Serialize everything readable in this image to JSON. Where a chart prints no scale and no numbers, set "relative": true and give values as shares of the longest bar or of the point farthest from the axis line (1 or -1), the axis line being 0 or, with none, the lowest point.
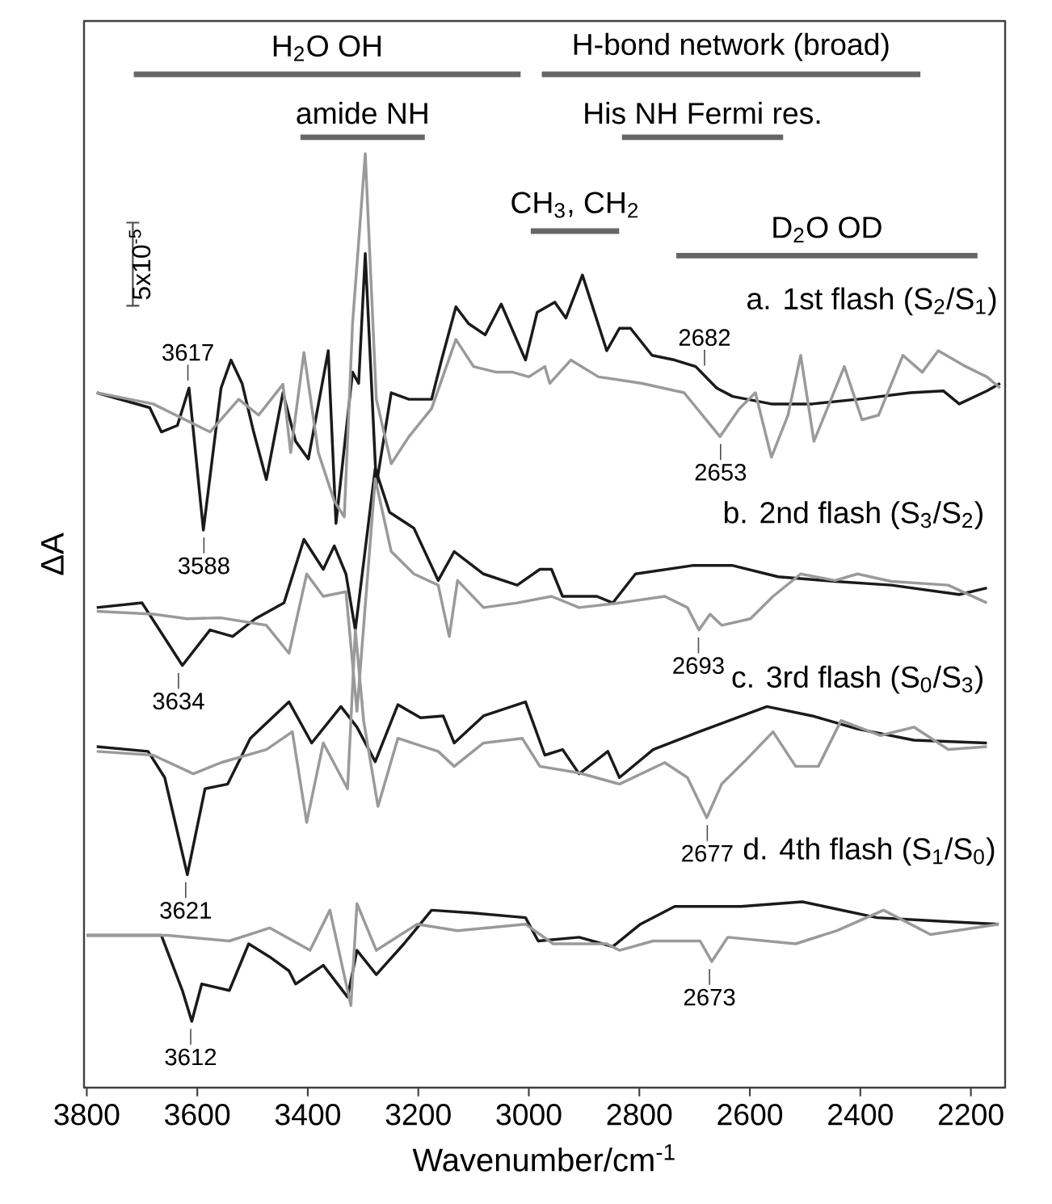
{
  "chart_data": {
    "type": "line",
    "relative": true,
    "xlabel": "Wavenumber/cm$^{-1}$",
    "ylabel": "ΔA",
    "xlim": [
      3805,
      2138
    ],
    "xticks": [
      3800,
      3600,
      3400,
      3200,
      3000,
      2800,
      2600,
      2400,
      2200
    ],
    "tick_labels": "x",
    "series": [
      {
        "name": "a. 1st flash (S$_{2}$/S$_{1}$)",
        "color": "#1a1a1a",
        "x": [
          3782,
          3686,
          3665,
          3636,
          3615,
          3589,
          3557,
          3539,
          3519,
          3498,
          3475,
          3445,
          3422,
          3399,
          3363,
          3349,
          3319,
          3308,
          3296,
          3276,
          3249,
          3217,
          3176,
          3158,
          3132,
          3109,
          3079,
          3050,
          3006,
          2985,
          2953,
          2933,
          2903,
          2859,
          2836,
          2816,
          2777,
          2736,
          2698,
          2660,
          2631,
          2561,
          2487,
          2405,
          2309,
          2250,
          2221,
          2171,
          2147
        ],
        "values": [
          0.744,
          0.728,
          0.702,
          0.709,
          0.749,
          0.597,
          0.749,
          0.779,
          0.754,
          0.702,
          0.651,
          0.744,
          0.692,
          0.673,
          0.789,
          0.604,
          0.766,
          0.754,
          0.893,
          0.645,
          0.744,
          0.737,
          0.737,
          0.779,
          0.836,
          0.818,
          0.806,
          0.839,
          0.779,
          0.83,
          0.841,
          0.824,
          0.87,
          0.789,
          0.813,
          0.813,
          0.784,
          0.779,
          0.772,
          0.749,
          0.74,
          0.732,
          0.732,
          0.737,
          0.744,
          0.746,
          0.732,
          0.746,
          0.754
        ]
      },
      {
        "color": "#9a9a9a",
        "x": [
          3782,
          3680,
          3577,
          3525,
          3489,
          3445,
          3431,
          3407,
          3381,
          3352,
          3334,
          3319,
          3296,
          3276,
          3249,
          3217,
          3176,
          3132,
          3100,
          3059,
          3029,
          3000,
          2971,
          2962,
          2924,
          2874,
          2795,
          2719,
          2654,
          2619,
          2590,
          2561,
          2531,
          2508,
          2484,
          2429,
          2397,
          2367,
          2323,
          2288,
          2259,
          2209,
          2171,
          2147
        ],
        "values": [
          0.744,
          0.732,
          0.702,
          0.737,
          0.72,
          0.753,
          0.68,
          0.787,
          0.68,
          0.628,
          0.611,
          0.818,
          1.0,
          0.737,
          0.668,
          0.697,
          0.727,
          0.801,
          0.772,
          0.766,
          0.766,
          0.761,
          0.772,
          0.754,
          0.779,
          0.761,
          0.754,
          0.744,
          0.697,
          0.727,
          0.744,
          0.675,
          0.72,
          0.784,
          0.692,
          0.772,
          0.715,
          0.72,
          0.784,
          0.766,
          0.789,
          0.772,
          0.761,
          0.749
        ]
      },
      {
        "name": "b. 2nd flash (S$_{3}$/S$_{2}$)",
        "color": "#1a1a1a",
        "x": [
          3782,
          3700,
          3627,
          3577,
          3536,
          3495,
          3443,
          3407,
          3372,
          3352,
          3331,
          3314,
          3278,
          3252,
          3208,
          3164,
          3135,
          3082,
          3021,
          2980,
          2959,
          2939,
          2877,
          2848,
          2807,
          2704,
          2631,
          2549,
          2446,
          2344,
          2221,
          2171
        ],
        "values": [
          0.514,
          0.519,
          0.452,
          0.49,
          0.483,
          0.502,
          0.519,
          0.587,
          0.555,
          0.58,
          0.55,
          0.49,
          0.663,
          0.616,
          0.599,
          0.543,
          0.574,
          0.55,
          0.538,
          0.555,
          0.555,
          0.526,
          0.526,
          0.519,
          0.55,
          0.559,
          0.559,
          0.547,
          0.542,
          0.538,
          0.528,
          0.535
        ]
      },
      {
        "color": "#9a9a9a",
        "x": [
          3782,
          3680,
          3618,
          3557,
          3475,
          3434,
          3402,
          3372,
          3331,
          3311,
          3278,
          3249,
          3208,
          3164,
          3144,
          3129,
          3082,
          3021,
          2959,
          2909,
          2836,
          2754,
          2713,
          2692,
          2672,
          2651,
          2599,
          2558,
          2508,
          2446,
          2405,
          2344,
          2241,
          2171
        ],
        "values": [
          0.51,
          0.507,
          0.502,
          0.503,
          0.495,
          0.465,
          0.55,
          0.526,
          0.531,
          0.403,
          0.652,
          0.574,
          0.55,
          0.538,
          0.483,
          0.543,
          0.514,
          0.519,
          0.526,
          0.514,
          0.519,
          0.526,
          0.514,
          0.49,
          0.507,
          0.495,
          0.502,
          0.526,
          0.55,
          0.543,
          0.55,
          0.542,
          0.538,
          0.519
        ]
      },
      {
        "name": "c. 3rd flash (S$_{0}$/S$_{3}$)",
        "color": "#1a1a1a",
        "x": [
          3782,
          3689,
          3659,
          3618,
          3586,
          3545,
          3504,
          3434,
          3393,
          3340,
          3311,
          3278,
          3237,
          3196,
          3155,
          3135,
          3082,
          3006,
          2971,
          2939,
          2909,
          2857,
          2836,
          2775,
          2692,
          2569,
          2487,
          2405,
          2303,
          2171
        ],
        "values": [
          0.365,
          0.36,
          0.332,
          0.228,
          0.32,
          0.325,
          0.374,
          0.413,
          0.369,
          0.408,
          0.386,
          0.349,
          0.41,
          0.396,
          0.398,
          0.369,
          0.398,
          0.413,
          0.356,
          0.362,
          0.336,
          0.36,
          0.332,
          0.362,
          0.381,
          0.408,
          0.398,
          0.384,
          0.372,
          0.369
        ]
      },
      {
        "color": "#9a9a9a",
        "x": [
          3782,
          3680,
          3607,
          3557,
          3475,
          3428,
          3402,
          3372,
          3328,
          3314,
          3299,
          3273,
          3237,
          3164,
          3135,
          3082,
          3012,
          2980,
          2909,
          2836,
          2754,
          2713,
          2678,
          2651,
          2610,
          2558,
          2517,
          2476,
          2435,
          2364,
          2303,
          2241,
          2171
        ],
        "values": [
          0.36,
          0.356,
          0.336,
          0.348,
          0.362,
          0.381,
          0.284,
          0.369,
          0.32,
          0.49,
          0.393,
          0.301,
          0.374,
          0.36,
          0.344,
          0.369,
          0.374,
          0.344,
          0.337,
          0.325,
          0.348,
          0.332,
          0.289,
          0.325,
          0.349,
          0.381,
          0.344,
          0.344,
          0.393,
          0.377,
          0.386,
          0.362,
          0.365
        ]
      },
      {
        "name": "d. 4th flash (S$_{1}$/S$_{0}$)",
        "color": "#1a1a1a",
        "x": [
          3800,
          3665,
          3627,
          3610,
          3592,
          3542,
          3507,
          3469,
          3434,
          3422,
          3372,
          3328,
          3311,
          3276,
          3226,
          3176,
          3103,
          3006,
          2983,
          2909,
          2848,
          2798,
          2736,
          2616,
          2505,
          2370,
          2250,
          2150
        ],
        "values": [
          0.163,
          0.163,
          0.104,
          0.071,
          0.111,
          0.104,
          0.154,
          0.14,
          0.125,
          0.111,
          0.131,
          0.097,
          0.147,
          0.121,
          0.154,
          0.19,
          0.187,
          0.182,
          0.157,
          0.161,
          0.151,
          0.175,
          0.194,
          0.194,
          0.199,
          0.182,
          0.178,
          0.175
        ]
      },
      {
        "color": "#9a9a9a",
        "x": [
          3800,
          3654,
          3542,
          3469,
          3396,
          3360,
          3322,
          3311,
          3276,
          3202,
          3129,
          3006,
          2956,
          2859,
          2836,
          2775,
          2690,
          2669,
          2640,
          2517,
          2443,
          2358,
          2273,
          2150
        ],
        "values": [
          0.163,
          0.163,
          0.157,
          0.171,
          0.147,
          0.19,
          0.088,
          0.197,
          0.147,
          0.175,
          0.168,
          0.175,
          0.154,
          0.154,
          0.147,
          0.157,
          0.157,
          0.135,
          0.161,
          0.154,
          0.168,
          0.19,
          0.164,
          0.175
        ]
      }
    ],
    "annotations": [
      "H$_{2}$O OH",
      "H-bond network (broad)",
      "amide NH",
      "His NH Fermi res.",
      "CH$_{3}$, CH$_{2}$",
      "D$_{2}$O OD",
      {
        "text": "3617",
        "x": 3617,
        "y": 0.749
      },
      {
        "text": "3588",
        "x": 3588,
        "y": 0.597
      },
      {
        "text": "2682",
        "x": 2682,
        "y": 0.765
      },
      {
        "text": "2653",
        "x": 2653,
        "y": 0.697
      },
      {
        "text": "3634",
        "x": 3634,
        "y": 0.452
      },
      {
        "text": "2693",
        "x": 2693,
        "y": 0.49
      },
      {
        "text": "3621",
        "x": 3621,
        "y": 0.228
      },
      {
        "text": "2677",
        "x": 2677,
        "y": 0.289
      },
      {
        "text": "3612",
        "x": 3612,
        "y": 0.071
      },
      {
        "text": "2673",
        "x": 2673,
        "y": 0.135
      },
      "5x10$^{-5}$"
    ]
  }
}
